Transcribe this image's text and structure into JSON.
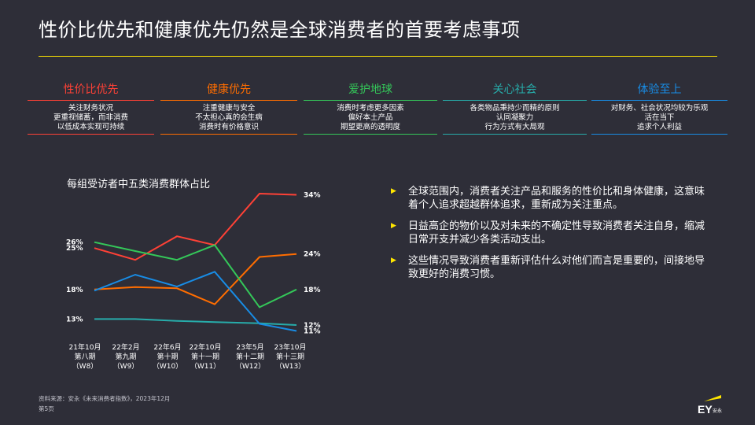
{
  "title": "性价比优先和健康优先仍然是全球消费者的首要考虑事项",
  "categories": [
    {
      "title": "性价比优先",
      "color": "#ff4136",
      "lines": [
        "关注财务状况",
        "更重视储蓄，而非消费",
        "以低成本实现可持续"
      ]
    },
    {
      "title": "健康优先",
      "color": "#ff6d00",
      "lines": [
        "注重健康与安全",
        "不太担心真的会生病",
        "消费时有价格意识"
      ]
    },
    {
      "title": "爱护地球",
      "color": "#34c759",
      "lines": [
        "消费时考虑更多因素",
        "偏好本土产品",
        "期望更高的透明度"
      ]
    },
    {
      "title": "关心社会",
      "color": "#27acaa",
      "lines": [
        "各类物品秉持少而精的原则",
        "认同凝聚力",
        "行为方式有大局观"
      ]
    },
    {
      "title": "体验至上",
      "color": "#188ce5",
      "lines": [
        "对财务、社会状况均较为乐观",
        "活在当下",
        "追求个人利益"
      ]
    }
  ],
  "chart_title": "每组受访者中五类消费群体占比",
  "chart_data": {
    "type": "line",
    "x": [
      "21年10月\n第八期\n（W8）",
      "22年2月\n第九期\n（W9）",
      "22年6月\n第十期\n（W10）",
      "22年10月\n第十一期\n（W11）",
      "23年5月\n第十二期\n（W12）",
      "23年10月\n第十三期\n（W13）"
    ],
    "series": [
      {
        "name": "性价比优先",
        "color": "#ff4136",
        "values": [
          25,
          23,
          27,
          25.5,
          34.2,
          34
        ]
      },
      {
        "name": "健康优先",
        "color": "#ff6d00",
        "values": [
          18,
          18.4,
          18.2,
          15.5,
          23.5,
          24
        ]
      },
      {
        "name": "爱护地球",
        "color": "#34c759",
        "values": [
          26,
          24.5,
          23,
          25.5,
          15,
          18
        ]
      },
      {
        "name": "关心社会",
        "color": "#27acaa",
        "values": [
          13,
          13,
          12.7,
          12.5,
          12.3,
          12
        ]
      },
      {
        "name": "体验至上",
        "color": "#188ce5",
        "values": [
          17.8,
          20.5,
          18.5,
          21,
          12.2,
          11
        ]
      }
    ],
    "ylim": [
      10,
      35
    ],
    "left_labels": [
      {
        "text": "26%",
        "value": 26
      },
      {
        "text": "25%",
        "value": 25
      },
      {
        "text": "18%",
        "value": 18
      },
      {
        "text": "13%",
        "value": 13
      }
    ],
    "right_labels": [
      {
        "text": "34%",
        "value": 34
      },
      {
        "text": "24%",
        "value": 24
      },
      {
        "text": "18%",
        "value": 18
      },
      {
        "text": "12%",
        "value": 12
      },
      {
        "text": "11%",
        "value": 11
      }
    ]
  },
  "bullets": [
    "全球范围内，消费者关注产品和服务的性价比和身体健康，这意味着个人追求超越群体追求，重新成为关注重点。",
    "日益高企的物价以及对未来的不确定性导致消费者关注自身，缩减日常开支并减少各类活动支出。",
    "这些情况导致消费者重新评估什么对他们而言是重要的，间接地导致更好的消费习惯。"
  ],
  "source": "资料来源：安永《未来消费者指数》，2023年12月",
  "page": "第5页",
  "logo_text": "EY",
  "logo_sub": "安永",
  "colors": {
    "background": "#2e2e38",
    "accent": "#ffe600"
  }
}
